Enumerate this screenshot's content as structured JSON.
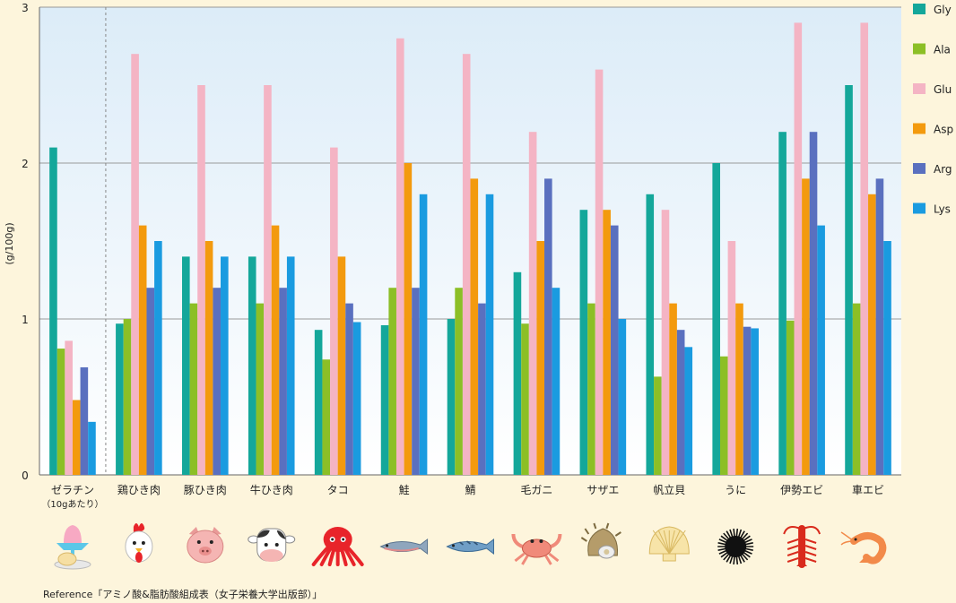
{
  "chart_data": {
    "type": "bar",
    "ylabel": "(g/100g)",
    "ylim": [
      0,
      3
    ],
    "yticks": [
      0,
      1,
      2,
      3
    ],
    "grid": true,
    "legend_position": "right",
    "categories": [
      {
        "label": "ゼラチン",
        "sub": "（10gあたり）",
        "icon": "gelatin-dessert-icon"
      },
      {
        "label": "鶏ひき肉",
        "icon": "chicken-icon"
      },
      {
        "label": "豚ひき肉",
        "icon": "pig-icon"
      },
      {
        "label": "牛ひき肉",
        "icon": "cow-icon"
      },
      {
        "label": "タコ",
        "icon": "octopus-icon"
      },
      {
        "label": "鮭",
        "icon": "salmon-icon"
      },
      {
        "label": "鯖",
        "icon": "mackerel-icon"
      },
      {
        "label": "毛ガニ",
        "icon": "crab-icon"
      },
      {
        "label": "サザエ",
        "icon": "turban-shell-icon"
      },
      {
        "label": "帆立貝",
        "icon": "scallop-icon"
      },
      {
        "label": "うに",
        "icon": "sea-urchin-icon"
      },
      {
        "label": "伊勢エビ",
        "icon": "spiny-lobster-icon"
      },
      {
        "label": "車エビ",
        "icon": "prawn-icon"
      }
    ],
    "series": [
      {
        "name": "Gly",
        "color": "#14a79a",
        "values": [
          2.1,
          0.97,
          1.4,
          1.4,
          0.93,
          0.96,
          1.0,
          1.3,
          1.7,
          1.8,
          2.0,
          2.2,
          2.5
        ]
      },
      {
        "name": "Ala",
        "color": "#8cbf26",
        "values": [
          0.81,
          1.0,
          1.1,
          1.1,
          0.74,
          1.2,
          1.2,
          0.97,
          1.1,
          0.63,
          0.76,
          0.99,
          1.1
        ]
      },
      {
        "name": "Glu",
        "color": "#f4b4c4",
        "values": [
          0.86,
          2.7,
          2.5,
          2.5,
          2.1,
          2.8,
          2.7,
          2.2,
          2.6,
          1.7,
          1.5,
          2.9,
          2.9
        ]
      },
      {
        "name": "Asp",
        "color": "#f39a0e",
        "values": [
          0.48,
          1.6,
          1.5,
          1.6,
          1.4,
          2.0,
          1.9,
          1.5,
          1.7,
          1.1,
          1.1,
          1.9,
          1.8
        ]
      },
      {
        "name": "Arg",
        "color": "#5a70bf",
        "values": [
          0.69,
          1.2,
          1.2,
          1.2,
          1.1,
          1.2,
          1.1,
          1.9,
          1.6,
          0.93,
          0.95,
          2.2,
          1.9
        ]
      },
      {
        "name": "Lys",
        "color": "#1a9be0",
        "values": [
          0.34,
          1.5,
          1.4,
          1.4,
          0.98,
          1.8,
          1.8,
          1.2,
          1.0,
          0.82,
          0.94,
          1.6,
          1.5
        ]
      }
    ],
    "reference": "Reference「アミノ酸&脂肪酸組成表（女子栄養大学出版部）」"
  }
}
